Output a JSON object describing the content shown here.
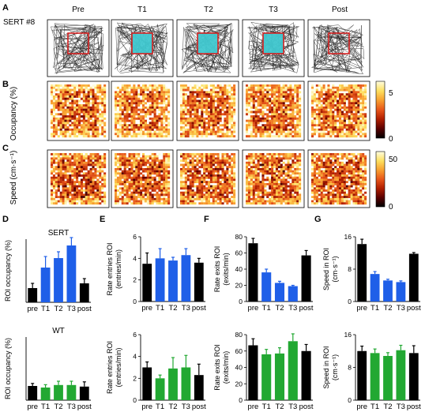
{
  "panel_letters": {
    "a": "A",
    "b": "B",
    "c": "C",
    "d": "D",
    "e": "E",
    "f": "F",
    "g": "G"
  },
  "row_a": {
    "subject_label": "SERT #8",
    "sessions": [
      "Pre",
      "T1",
      "T2",
      "T3",
      "Post"
    ],
    "roi_highlighted": [
      false,
      true,
      true,
      true,
      false
    ],
    "roi_color": "#d42020",
    "stim_color": "#40c8d0",
    "track_color": "#222222"
  },
  "row_b": {
    "ylabel": "Occupancy (%)",
    "colorbar_ticks": [
      "5",
      "0"
    ],
    "colormap": [
      "#000000",
      "#5a0000",
      "#b01e00",
      "#e8561a",
      "#f8a030",
      "#fde060",
      "#fffde0"
    ]
  },
  "row_c": {
    "ylabel": "Speed (cm·s⁻¹)",
    "colorbar_ticks": [
      "50",
      "0"
    ]
  },
  "chart_data": [
    {
      "panel": "D",
      "type": "bar",
      "title": "SERT",
      "ylabel": "ROI occupancy (%)",
      "categories": [
        "pre",
        "T1",
        "T2",
        "T3",
        "post"
      ],
      "values": [
        4.5,
        11,
        14,
        18,
        6
      ],
      "errors": [
        1.5,
        3.5,
        2,
        2.5,
        1.5
      ],
      "colors": [
        "#000000",
        "#1f5fe8",
        "#1f5fe8",
        "#1f5fe8",
        "#000000"
      ],
      "ylim": [
        0,
        20
      ],
      "yticks": []
    },
    {
      "panel": "D",
      "type": "bar",
      "title": "WT",
      "ylabel": "ROI occupancy (%)",
      "categories": [
        "pre",
        "T1",
        "T2",
        "T3",
        "post"
      ],
      "values": [
        4.5,
        4,
        4.8,
        4.8,
        4.3
      ],
      "errors": [
        0.8,
        0.9,
        1.2,
        1.2,
        1.5
      ],
      "colors": [
        "#000000",
        "#22a832",
        "#22a832",
        "#22a832",
        "#000000"
      ],
      "ylim": [
        0,
        20
      ],
      "yticks": []
    },
    {
      "panel": "E",
      "type": "bar",
      "title": "",
      "ylabel": "Rate entries ROI (entries/min)",
      "categories": [
        "pre",
        "T1",
        "T2",
        "T3",
        "post"
      ],
      "values": [
        3.5,
        4.0,
        3.8,
        4.3,
        3.6
      ],
      "errors": [
        1.0,
        0.9,
        0.3,
        0.6,
        0.4
      ],
      "colors": [
        "#000000",
        "#1f5fe8",
        "#1f5fe8",
        "#1f5fe8",
        "#000000"
      ],
      "ylim": [
        0,
        6
      ],
      "yticks": [
        "0",
        "2",
        "4",
        "6"
      ]
    },
    {
      "panel": "E",
      "type": "bar",
      "title": "",
      "ylabel": "Rate entries ROI (entries/min)",
      "categories": [
        "pre",
        "T1",
        "T2",
        "T3",
        "post"
      ],
      "values": [
        3.0,
        2.0,
        2.9,
        3.0,
        2.3
      ],
      "errors": [
        0.5,
        0.3,
        1.0,
        1.1,
        1.0
      ],
      "colors": [
        "#000000",
        "#22a832",
        "#22a832",
        "#22a832",
        "#000000"
      ],
      "ylim": [
        0,
        6
      ],
      "yticks": [
        "0",
        "2",
        "4",
        "6"
      ]
    },
    {
      "panel": "F",
      "type": "bar",
      "title": "",
      "ylabel": "Rate exits ROI (exits/min)",
      "categories": [
        "pre",
        "T1",
        "T2",
        "T3",
        "post"
      ],
      "values": [
        72,
        36,
        23,
        19,
        57
      ],
      "errors": [
        6,
        4,
        2,
        1,
        6
      ],
      "colors": [
        "#000000",
        "#1f5fe8",
        "#1f5fe8",
        "#1f5fe8",
        "#000000"
      ],
      "ylim": [
        0,
        80
      ],
      "yticks": [
        "0",
        "20",
        "40",
        "60",
        "80"
      ]
    },
    {
      "panel": "F",
      "type": "bar",
      "title": "",
      "ylabel": "Rate exits ROI (exits/min)",
      "categories": [
        "pre",
        "T1",
        "T2",
        "T3",
        "post"
      ],
      "values": [
        67,
        56,
        57,
        72,
        60
      ],
      "errors": [
        8,
        6,
        7,
        9,
        8
      ],
      "colors": [
        "#000000",
        "#22a832",
        "#22a832",
        "#22a832",
        "#000000"
      ],
      "ylim": [
        0,
        80
      ],
      "yticks": [
        "0",
        "20",
        "40",
        "60",
        "80"
      ]
    },
    {
      "panel": "G",
      "type": "bar",
      "title": "",
      "ylabel": "Speed in ROI (cm·s⁻¹)",
      "categories": [
        "pre",
        "T1",
        "T2",
        "T3",
        "post"
      ],
      "values": [
        14.2,
        6.8,
        5.2,
        4.8,
        11.8
      ],
      "errors": [
        1.2,
        0.6,
        0.3,
        0.3,
        0.3
      ],
      "colors": [
        "#000000",
        "#1f5fe8",
        "#1f5fe8",
        "#1f5fe8",
        "#000000"
      ],
      "ylim": [
        0,
        16
      ],
      "yticks": [
        "0",
        "8",
        "16"
      ]
    },
    {
      "panel": "G",
      "type": "bar",
      "title": "",
      "ylabel": "Speed in ROI (cm·s⁻¹)",
      "categories": [
        "pre",
        "T1",
        "T2",
        "T3",
        "post"
      ],
      "values": [
        12,
        11.5,
        10.8,
        12.2,
        11.5
      ],
      "errors": [
        1.2,
        1.0,
        0.8,
        1.2,
        1.8
      ],
      "colors": [
        "#000000",
        "#22a832",
        "#22a832",
        "#22a832",
        "#000000"
      ],
      "ylim": [
        0,
        16
      ],
      "yticks": [
        "0",
        "8",
        "16"
      ]
    }
  ]
}
